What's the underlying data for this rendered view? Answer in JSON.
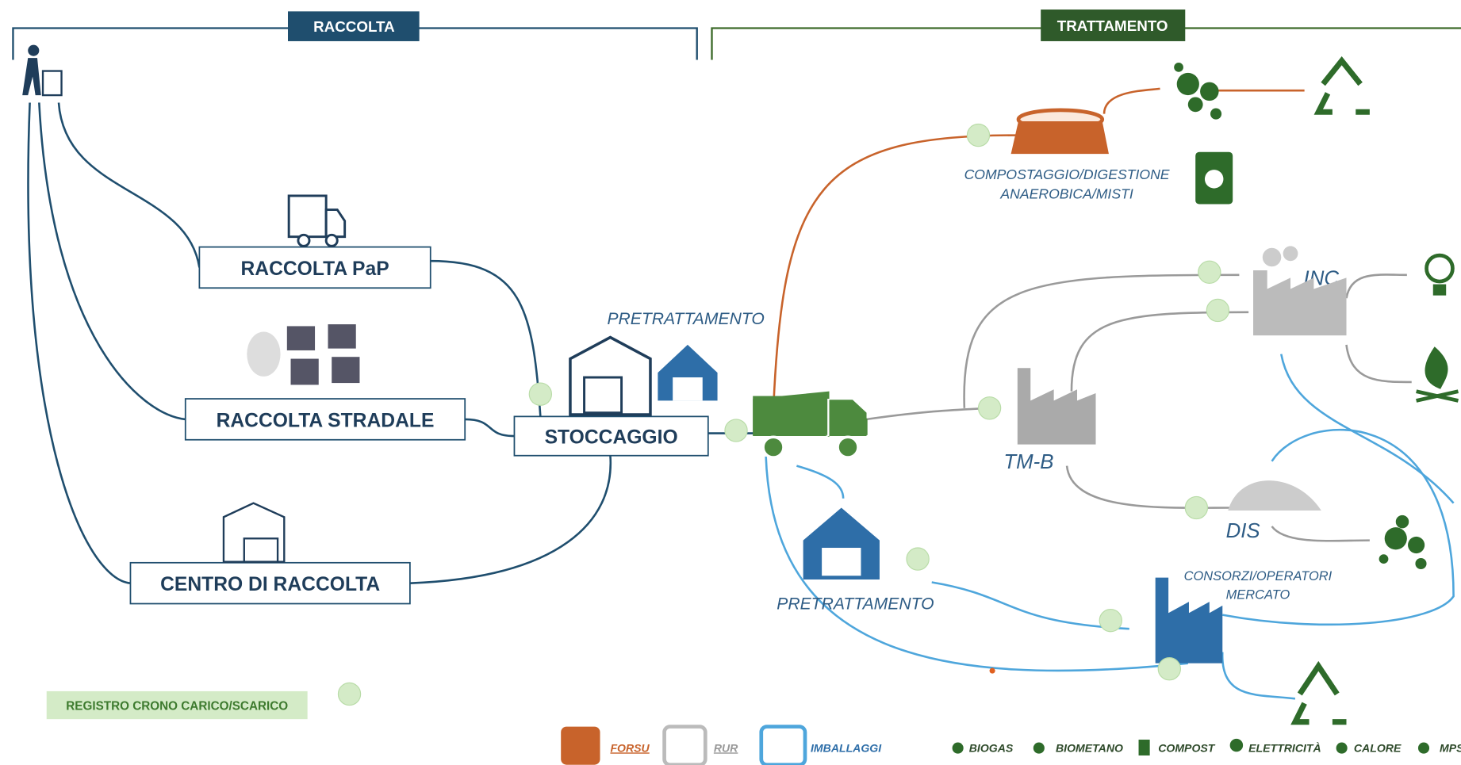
{
  "sections": {
    "collection": "RACCOLTA",
    "treatment": "TRATTAMENTO"
  },
  "nodes": {
    "pap": "RACCOLTA PaP",
    "stradale": "RACCOLTA STRADALE",
    "centro": "CENTRO DI RACCOLTA",
    "stoccaggio": "STOCCAGGIO",
    "pretrattamento_top": "PRETRATTAMENTO",
    "pretrattamento_bottom": "PRETRATTAMENTO",
    "compostaggio": [
      "COMPOSTAGGIO/DIGESTIONE",
      "ANAEROBICA/MISTI"
    ],
    "inc": "INC",
    "tmb": "TM-B",
    "dis": "DIS",
    "consorzi": [
      "CONSORZI/OPERATORI",
      "MERCATO"
    ]
  },
  "registro": "REGISTRO CRONO CARICO/SCARICO",
  "legend": {
    "waste": [
      "FORSU",
      "RUR",
      "IMBALLAGGI"
    ],
    "outputs": [
      "BIOGAS",
      "BIOMETANO",
      "COMPOST",
      "ELETTRICITÀ",
      "CALORE",
      "MPS"
    ]
  }
}
